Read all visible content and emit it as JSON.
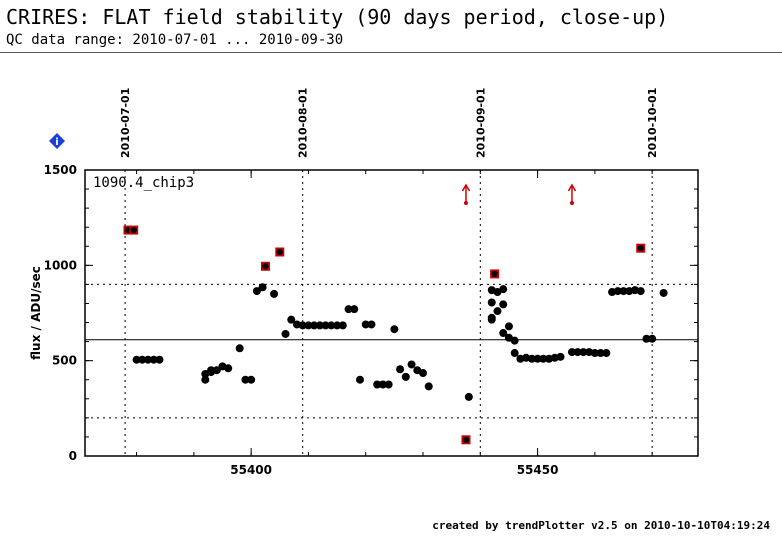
{
  "header": {
    "title": "CRIRES: FLAT field stability (90 days period, close-up)",
    "subtitle": "QC data range: 2010-07-01 ... 2010-09-30"
  },
  "footer": {
    "credit": "created by trendPlotter v2.5 on 2010-10-10T04:19:24"
  },
  "info_icon": "i",
  "chart_data": {
    "type": "scatter",
    "panel_label": "1090.4_chip3",
    "ylabel": "flux / ADU/sec",
    "xlabel": "",
    "ylim": [
      0,
      1500
    ],
    "xlim": [
      55371,
      55478
    ],
    "xticks": [
      55400,
      55450
    ],
    "yticks": [
      0,
      500,
      1000,
      1500
    ],
    "grid": false,
    "reference_lines": {
      "mean": 610,
      "upper_limit": 900,
      "lower_limit": 200
    },
    "date_markers": [
      {
        "mjd": 55378,
        "label": "2010-07-01"
      },
      {
        "mjd": 55409,
        "label": "2010-08-01"
      },
      {
        "mjd": 55440,
        "label": "2010-09-01"
      },
      {
        "mjd": 55470,
        "label": "2010-10-01"
      }
    ],
    "colors": {
      "normal": "#000000",
      "outlier": "#d00000",
      "marker_icon": "#1a3fd6"
    },
    "series": [
      {
        "points": [
          [
            55380,
            505
          ],
          [
            55381,
            505
          ],
          [
            55382,
            505
          ],
          [
            55383,
            505
          ],
          [
            55384,
            505
          ],
          [
            55392,
            400
          ],
          [
            55392,
            430
          ],
          [
            55393,
            440
          ],
          [
            55393,
            450
          ],
          [
            55394,
            450
          ],
          [
            55395,
            470
          ],
          [
            55396,
            460
          ],
          [
            55398,
            565
          ],
          [
            55399,
            400
          ],
          [
            55400,
            400
          ],
          [
            55401,
            865
          ],
          [
            55402,
            885
          ],
          [
            55404,
            850
          ],
          [
            55406,
            640
          ],
          [
            55407,
            715
          ],
          [
            55408,
            690
          ],
          [
            55409,
            685
          ],
          [
            55410,
            685
          ],
          [
            55411,
            685
          ],
          [
            55412,
            685
          ],
          [
            55413,
            685
          ],
          [
            55414,
            685
          ],
          [
            55415,
            685
          ],
          [
            55416,
            685
          ],
          [
            55417,
            770
          ],
          [
            55418,
            770
          ],
          [
            55419,
            400
          ],
          [
            55420,
            690
          ],
          [
            55421,
            690
          ],
          [
            55422,
            375
          ],
          [
            55423,
            375
          ],
          [
            55424,
            375
          ],
          [
            55425,
            665
          ],
          [
            55426,
            455
          ],
          [
            55427,
            415
          ],
          [
            55428,
            480
          ],
          [
            55429,
            450
          ],
          [
            55430,
            435
          ],
          [
            55431,
            365
          ],
          [
            55438,
            310
          ],
          [
            55442,
            870
          ],
          [
            55442,
            805
          ],
          [
            55442,
            725
          ],
          [
            55442,
            715
          ],
          [
            55443,
            860
          ],
          [
            55443,
            760
          ],
          [
            55444,
            875
          ],
          [
            55444,
            795
          ],
          [
            55444,
            645
          ],
          [
            55445,
            680
          ],
          [
            55445,
            620
          ],
          [
            55446,
            605
          ],
          [
            55446,
            540
          ],
          [
            55447,
            510
          ],
          [
            55448,
            515
          ],
          [
            55449,
            510
          ],
          [
            55450,
            510
          ],
          [
            55451,
            510
          ],
          [
            55452,
            510
          ],
          [
            55453,
            515
          ],
          [
            55454,
            520
          ],
          [
            55456,
            545
          ],
          [
            55457,
            545
          ],
          [
            55458,
            545
          ],
          [
            55459,
            545
          ],
          [
            55460,
            540
          ],
          [
            55461,
            540
          ],
          [
            55462,
            540
          ],
          [
            55463,
            860
          ],
          [
            55464,
            865
          ],
          [
            55465,
            865
          ],
          [
            55466,
            865
          ],
          [
            55467,
            870
          ],
          [
            55468,
            865
          ],
          [
            55469,
            615
          ],
          [
            55470,
            615
          ],
          [
            55472,
            855
          ]
        ]
      },
      {
        "outlier": true,
        "points": [
          [
            55378.5,
            1185
          ],
          [
            55379.5,
            1185
          ],
          [
            55402.5,
            995
          ],
          [
            55405,
            1070
          ],
          [
            55437.5,
            85
          ],
          [
            55442.5,
            955
          ],
          [
            55468,
            1090
          ]
        ]
      }
    ],
    "offscale_arrows": [
      {
        "mjd": 55437.5
      },
      {
        "mjd": 55456
      }
    ]
  }
}
